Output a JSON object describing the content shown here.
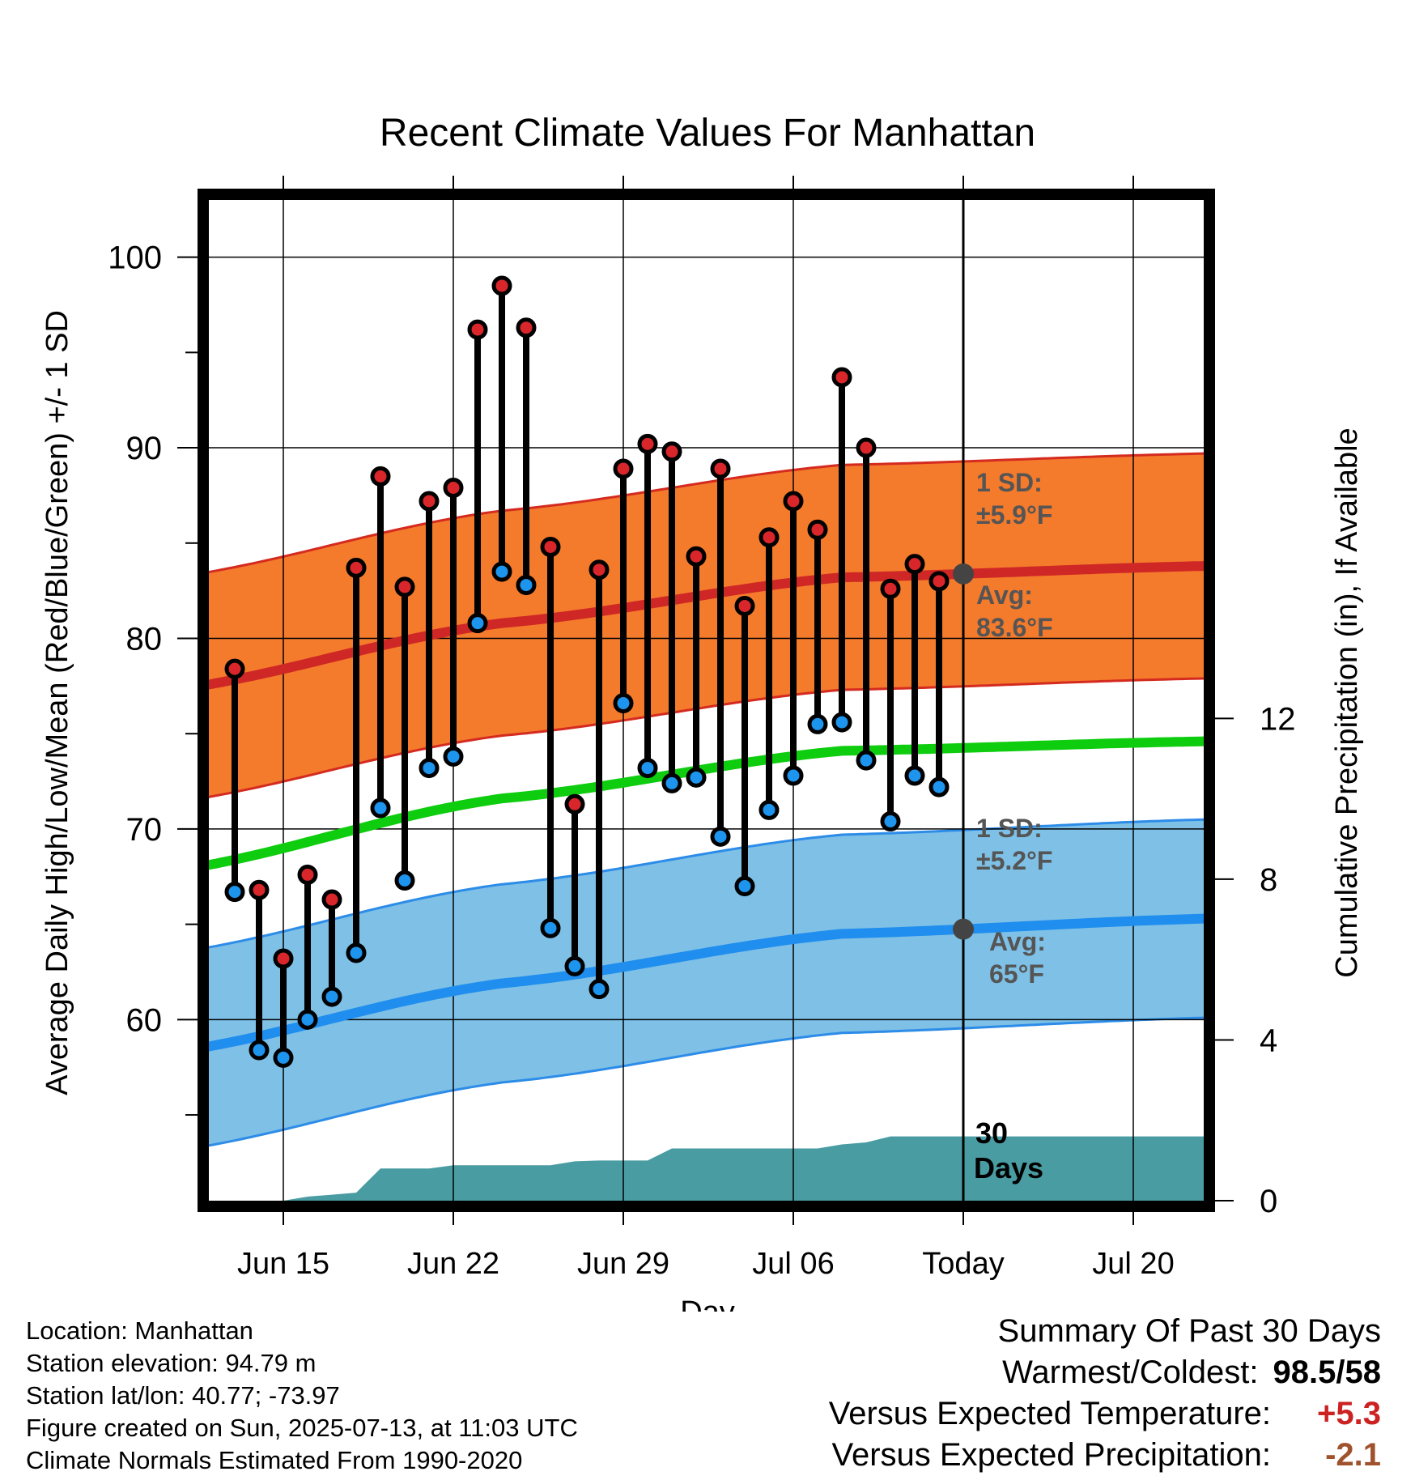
{
  "chart_data": {
    "type": "line",
    "title": "Recent Climate Values For Manhattan",
    "xlabel": "Day",
    "ylabel": "Average Daily High/Low/Mean (Red/Blue/Green) +/- 1 SD",
    "y2label": "Cumulative Precipitation (in), If Available",
    "xticks": [
      "Jun 15",
      "Jun 22",
      "Jun 29",
      "Jul 06",
      "Today",
      "Jul 20"
    ],
    "yticks": [
      "60",
      "70",
      "80",
      "90",
      "100"
    ],
    "y2ticks": [
      "0",
      "4",
      "8",
      "12"
    ],
    "ylim": [
      50.5,
      103
    ],
    "y2lim": [
      0,
      24.9
    ],
    "x_dates": [
      "2025-06-13",
      "2025-06-14",
      "2025-06-15",
      "2025-06-16",
      "2025-06-17",
      "2025-06-18",
      "2025-06-19",
      "2025-06-20",
      "2025-06-21",
      "2025-06-22",
      "2025-06-23",
      "2025-06-24",
      "2025-06-25",
      "2025-06-26",
      "2025-06-27",
      "2025-06-28",
      "2025-06-29",
      "2025-06-30",
      "2025-07-01",
      "2025-07-02",
      "2025-07-03",
      "2025-07-04",
      "2025-07-05",
      "2025-07-06",
      "2025-07-07",
      "2025-07-08",
      "2025-07-09",
      "2025-07-10",
      "2025-07-11",
      "2025-07-12"
    ],
    "daily_high": [
      78.4,
      66.8,
      63.2,
      67.6,
      66.3,
      83.7,
      88.5,
      82.7,
      87.2,
      87.9,
      96.2,
      98.5,
      96.3,
      84.8,
      71.3,
      83.6,
      88.9,
      90.2,
      89.8,
      84.3,
      88.9,
      81.7,
      85.3,
      87.2,
      85.7,
      93.7,
      90.0,
      82.6,
      83.9,
      83.0
    ],
    "daily_low": [
      66.7,
      58.4,
      58.0,
      60.0,
      61.2,
      63.5,
      71.1,
      67.3,
      73.2,
      73.8,
      80.8,
      83.5,
      82.8,
      64.8,
      62.8,
      61.6,
      76.6,
      73.2,
      72.4,
      72.7,
      69.6,
      67.0,
      71.0,
      72.8,
      75.5,
      75.6,
      73.6,
      70.4,
      72.8,
      72.2
    ],
    "normal_dates": [
      "2025-06-10",
      "2025-06-24",
      "2025-07-08",
      "2025-07-23"
    ],
    "normal_high": [
      77.2,
      80.8,
      83.2,
      83.8
    ],
    "normal_low": [
      58.2,
      61.9,
      64.5,
      65.3
    ],
    "normal_mean": [
      67.7,
      71.6,
      74.1,
      74.6
    ],
    "high_sd": 5.9,
    "low_sd": 5.2,
    "precip_dates": [
      "2025-06-13",
      "2025-06-14",
      "2025-06-15",
      "2025-06-16",
      "2025-06-17",
      "2025-06-18",
      "2025-06-19",
      "2025-06-20",
      "2025-06-21",
      "2025-06-22",
      "2025-06-23",
      "2025-06-24",
      "2025-06-25",
      "2025-06-26",
      "2025-06-27",
      "2025-06-28",
      "2025-06-29",
      "2025-06-30",
      "2025-07-01",
      "2025-07-02",
      "2025-07-03",
      "2025-07-04",
      "2025-07-05",
      "2025-07-06",
      "2025-07-07",
      "2025-07-08",
      "2025-07-09",
      "2025-07-10",
      "2025-07-11",
      "2025-07-12",
      "2025-07-13",
      "2025-07-23"
    ],
    "cumulative_precip": [
      0.0,
      0.0,
      0.0,
      0.1,
      0.15,
      0.2,
      0.8,
      0.8,
      0.8,
      0.88,
      0.88,
      0.88,
      0.88,
      0.88,
      0.98,
      1.0,
      1.0,
      1.0,
      1.3,
      1.3,
      1.3,
      1.3,
      1.3,
      1.3,
      1.3,
      1.4,
      1.45,
      1.6,
      1.6,
      1.6,
      1.6,
      1.6
    ],
    "today": "2025-07-13",
    "today_label": "Today",
    "precip_label": [
      "30",
      "Days"
    ],
    "high_sd_label": [
      "1 SD:",
      "±5.9°F"
    ],
    "high_avg_label": [
      "Avg:",
      "83.6°F"
    ],
    "low_sd_label": [
      "1 SD:",
      "±5.2°F"
    ],
    "low_avg_label": [
      "Avg:",
      "65°F"
    ],
    "grid": true,
    "colors": {
      "high_band": "#f47a2c",
      "high_band_edge": "#d42a1f",
      "high_line": "#cf2725",
      "high_dot": "#d9262a",
      "low_band": "#7ec0e6",
      "low_band_edge": "#2c8ce8",
      "low_line": "#1f8eee",
      "low_dot": "#1d95ef",
      "mean_line": "#0ecc0e",
      "precip": "#4a9ca3",
      "annotation": "#555555",
      "today_dot": "#444444"
    }
  },
  "footer": {
    "lines": [
      "Location: Manhattan",
      "Station elevation: 94.79 m",
      "Station lat/lon: 40.77; -73.97",
      "Figure created on Sun, 2025-07-13, at 11:03 UTC",
      "Climate Normals Estimated From 1990-2020"
    ]
  },
  "summary": {
    "heading": "Summary Of Past 30 Days",
    "rows": [
      {
        "label": "Warmest/Coldest:",
        "value": "98.5/58",
        "color": "#000000"
      },
      {
        "label": "Versus Expected Temperature:",
        "value": "+5.3",
        "color": "#cc2222"
      },
      {
        "label": "Versus Expected Precipitation:",
        "value": "-2.1",
        "color": "#a0522d"
      }
    ]
  }
}
